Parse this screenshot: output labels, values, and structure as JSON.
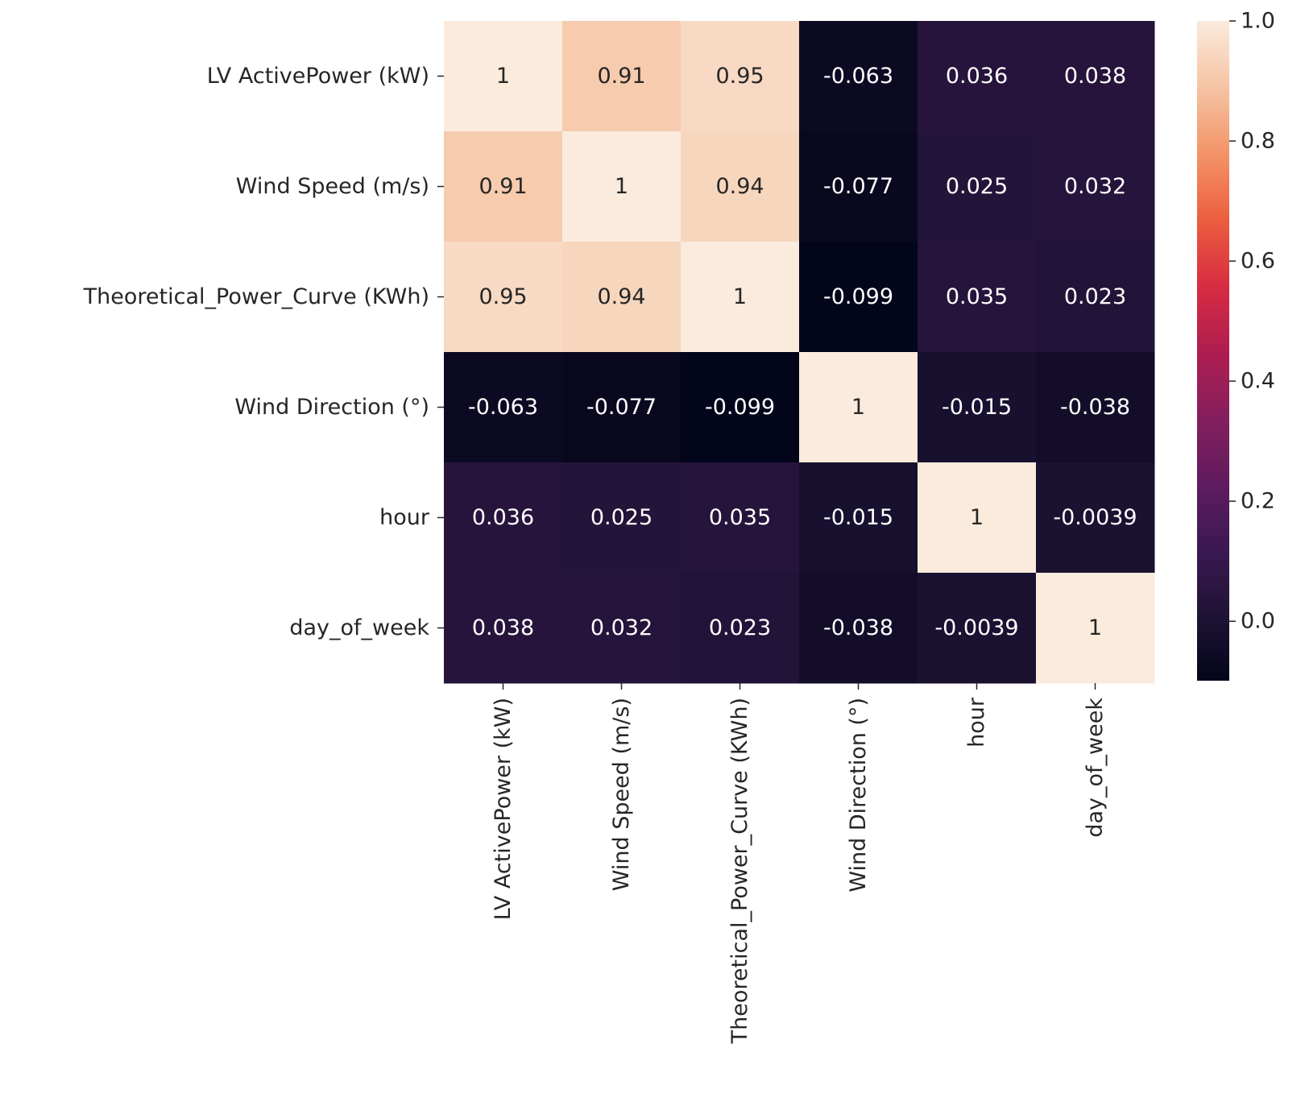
{
  "chart_data": {
    "type": "heatmap",
    "title": "",
    "xlabel": "",
    "ylabel": "",
    "rows": [
      "LV ActivePower (kW)",
      "Wind Speed (m/s)",
      "Theoretical_Power_Curve (KWh)",
      "Wind Direction (°)",
      "hour",
      "day_of_week"
    ],
    "columns": [
      "LV ActivePower (kW)",
      "Wind Speed (m/s)",
      "Theoretical_Power_Curve (KWh)",
      "Wind Direction (°)",
      "hour",
      "day_of_week"
    ],
    "values": [
      [
        1,
        0.91,
        0.95,
        -0.063,
        0.036,
        0.038
      ],
      [
        0.91,
        1,
        0.94,
        -0.077,
        0.025,
        0.032
      ],
      [
        0.95,
        0.94,
        1,
        -0.099,
        0.035,
        0.023
      ],
      [
        -0.063,
        -0.077,
        -0.099,
        1,
        -0.015,
        -0.038
      ],
      [
        0.036,
        0.025,
        0.035,
        -0.015,
        1,
        -0.0039
      ],
      [
        0.038,
        0.032,
        0.023,
        -0.038,
        -0.0039,
        1
      ]
    ],
    "annotations": [
      [
        "1",
        "0.91",
        "0.95",
        "-0.063",
        "0.036",
        "0.038"
      ],
      [
        "0.91",
        "1",
        "0.94",
        "-0.077",
        "0.025",
        "0.032"
      ],
      [
        "0.95",
        "0.94",
        "1",
        "-0.099",
        "0.035",
        "0.023"
      ],
      [
        "-0.063",
        "-0.077",
        "-0.099",
        "1",
        "-0.015",
        "-0.038"
      ],
      [
        "0.036",
        "0.025",
        "0.035",
        "-0.015",
        "1",
        "-0.0039"
      ],
      [
        "0.038",
        "0.032",
        "0.023",
        "-0.038",
        "-0.0039",
        "1"
      ]
    ],
    "colorbar": {
      "colormap": "rocket",
      "range": [
        -0.099,
        1.0
      ],
      "ticks": [
        0.0,
        0.2,
        0.4,
        0.6,
        0.8,
        1.0
      ],
      "tick_labels": [
        "0.0",
        "0.2",
        "0.4",
        "0.6",
        "0.8",
        "1.0"
      ]
    }
  }
}
